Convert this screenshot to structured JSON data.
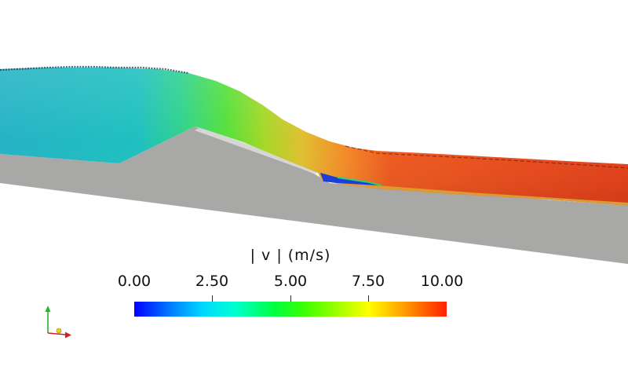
{
  "legend": {
    "title": "| v | (m/s)",
    "ticks": [
      "0.00",
      "2.50",
      "5.00",
      "7.50",
      "10.00"
    ],
    "range": [
      0,
      10
    ],
    "colormap": [
      "#0000ff",
      "#00d8ff",
      "#00ff40",
      "#ffff00",
      "#ff2000"
    ]
  },
  "colors": {
    "solid": "#a8a8a6",
    "background": "#ffffff"
  },
  "icons": [
    "axes-triad-icon"
  ]
}
